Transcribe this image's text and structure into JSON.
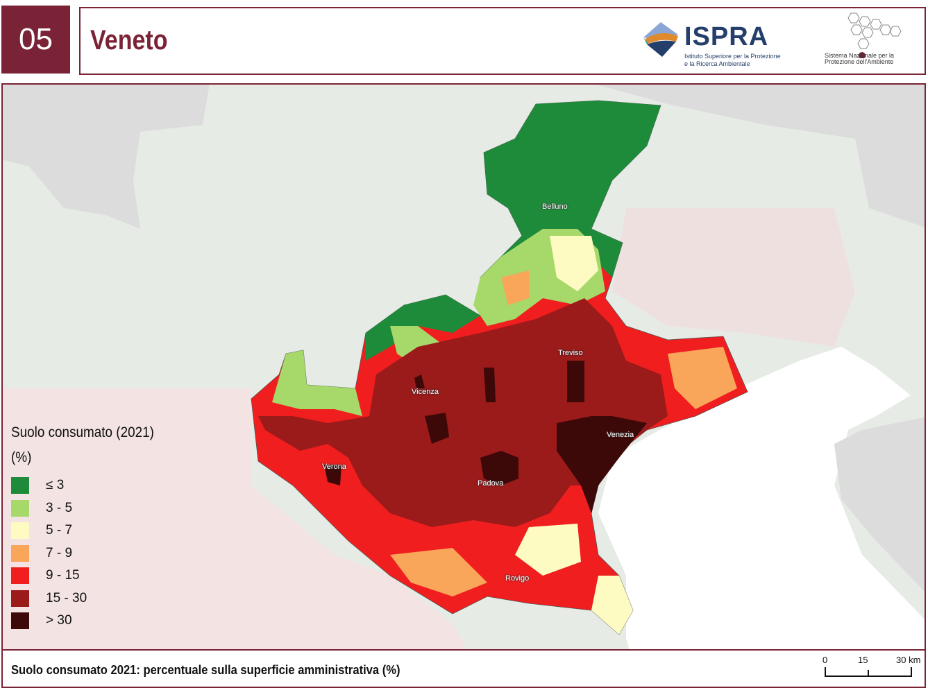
{
  "header": {
    "number": "05",
    "title": "Veneto",
    "logos": {
      "ispra_name": "ISPRA",
      "ispra_subtitle": "Istituto Superiore per la Protezione e la Ricerca Ambientale",
      "snpa_text": "Sistema Nazionale per la Protezione dell'Ambiente"
    }
  },
  "map": {
    "cities": [
      "Belluno",
      "Treviso",
      "Vicenza",
      "Venezia",
      "Verona",
      "Padova",
      "Rovigo"
    ],
    "legend": {
      "title": "Suolo consumato (2021)",
      "unit": "(%)",
      "classes": [
        {
          "label": "≤ 3",
          "color": "#1e8b3a"
        },
        {
          "label": "3 - 5",
          "color": "#a6d96a"
        },
        {
          "label": "5 - 7",
          "color": "#fdfbc2"
        },
        {
          "label": "7 - 9",
          "color": "#f9a55a"
        },
        {
          "label": "9 - 15",
          "color": "#f01e1e"
        },
        {
          "label": "15 - 30",
          "color": "#9b1a1a"
        },
        {
          "label": "> 30",
          "color": "#3d0808"
        }
      ]
    },
    "caption": "Suolo consumato 2021: percentuale sulla superficie amministrativa (%)",
    "scale_bar": {
      "labels": [
        "0",
        "15",
        "30 km"
      ]
    }
  }
}
